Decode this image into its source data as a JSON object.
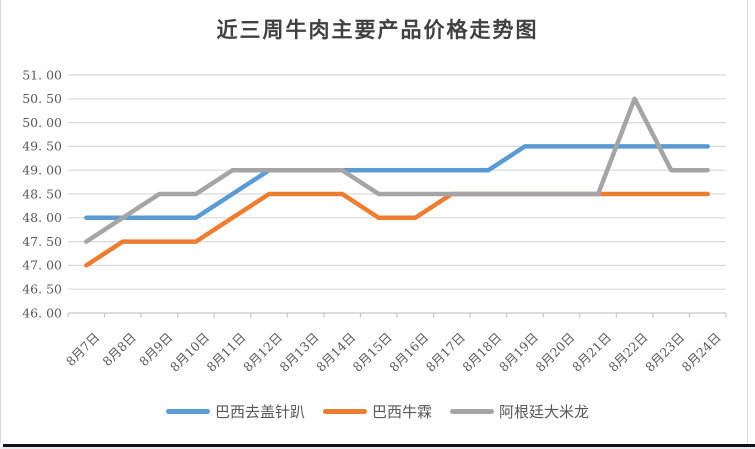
{
  "chart_data": {
    "type": "line",
    "title": "近三周牛肉主要产品价格走势图",
    "categories": [
      "8月7日",
      "8月8日",
      "8月9日",
      "8月10日",
      "8月11日",
      "8月12日",
      "8月13日",
      "8月14日",
      "8月15日",
      "8月16日",
      "8月17日",
      "8月18日",
      "8月19日",
      "8月20日",
      "8月21日",
      "8月22日",
      "8月23日",
      "8月24日"
    ],
    "series": [
      {
        "name": "巴西去盖针趴",
        "color": "#5B9BD5",
        "values": [
          48.0,
          48.0,
          48.0,
          48.0,
          48.5,
          49.0,
          49.0,
          49.0,
          49.0,
          49.0,
          49.0,
          49.0,
          49.5,
          49.5,
          49.5,
          49.5,
          49.5,
          49.5
        ]
      },
      {
        "name": "巴西牛霖",
        "color": "#ED7D31",
        "values": [
          47.0,
          47.5,
          47.5,
          47.5,
          48.0,
          48.5,
          48.5,
          48.5,
          48.0,
          48.0,
          48.5,
          48.5,
          48.5,
          48.5,
          48.5,
          48.5,
          48.5,
          48.5
        ]
      },
      {
        "name": "阿根廷大米龙",
        "color": "#A5A5A5",
        "values": [
          47.5,
          48.0,
          48.5,
          48.5,
          49.0,
          49.0,
          49.0,
          49.0,
          48.5,
          48.5,
          48.5,
          48.5,
          48.5,
          48.5,
          48.5,
          50.5,
          49.0,
          49.0
        ]
      }
    ],
    "ylim": [
      46.0,
      51.0
    ],
    "ytick_step": 0.5,
    "ytick_labels": [
      "51. 00",
      "50. 50",
      "50. 00",
      "49. 50",
      "49. 00",
      "48. 50",
      "48. 00",
      "47. 50",
      "47. 00",
      "46. 50",
      "46. 00"
    ],
    "grid": true,
    "legend_position": "bottom",
    "colors": {
      "grid": "#D9D9D9",
      "axis": "#C6C6C6",
      "labels": "#595959",
      "title": "#404040"
    }
  }
}
